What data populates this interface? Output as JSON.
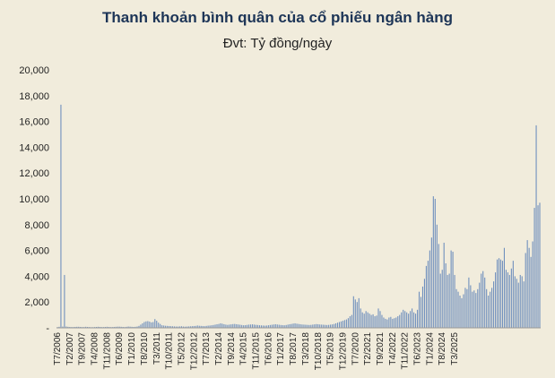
{
  "title": "Thanh khoản bình quân của cổ phiếu ngân hàng",
  "subtitle": "Đvt: Tỷ đồng/ngày",
  "colors": {
    "bar": "#6f8fbd",
    "background": "#f1ecdc",
    "title": "#1d3557"
  },
  "chart_data": {
    "type": "bar",
    "title": "Thanh khoản bình quân của cổ phiếu ngân hàng",
    "subtitle": "Đvt: Tỷ đồng/ngày",
    "xlabel": "",
    "ylabel": "",
    "ylim": [
      0,
      20000
    ],
    "yticks": [
      0,
      2000,
      4000,
      6000,
      8000,
      10000,
      12000,
      14000,
      16000,
      18000,
      20000
    ],
    "ytick_labels": [
      "-",
      "2,000",
      "4,000",
      "6,000",
      "8,000",
      "10,000",
      "12,000",
      "14,000",
      "16,000",
      "18,000",
      "20,000"
    ],
    "grid": false,
    "start": "2006-07",
    "xtick_labels": [
      "T7/2006",
      "T2/2007",
      "T9/2007",
      "T4/2008",
      "T11/2008",
      "T6/2009",
      "T1/2010",
      "T8/2010",
      "T3/2011",
      "T10/2011",
      "T5/2012",
      "T12/2012",
      "T7/2013",
      "T2/2014",
      "T9/2014",
      "T4/2015",
      "T11/2015",
      "T6/2016",
      "T1/2017",
      "T8/2017",
      "T3/2018",
      "T10/2018",
      "T5/2019",
      "T12/2019",
      "T7/2020",
      "T2/2021",
      "T9/2021",
      "T4/2022",
      "T11/2022",
      "T6/2023",
      "T1/2024",
      "T8/2024",
      "T3/2025"
    ],
    "values": [
      50,
      80,
      17300,
      100,
      4100,
      100,
      80,
      70,
      60,
      60,
      70,
      80,
      80,
      70,
      60,
      60,
      80,
      70,
      60,
      50,
      50,
      60,
      70,
      80,
      70,
      60,
      60,
      70,
      80,
      70,
      60,
      60,
      70,
      80,
      90,
      90,
      80,
      70,
      60,
      80,
      100,
      90,
      80,
      70,
      80,
      100,
      150,
      250,
      350,
      450,
      500,
      520,
      480,
      420,
      450,
      680,
      550,
      400,
      300,
      200,
      180,
      160,
      150,
      140,
      130,
      120,
      110,
      100,
      100,
      110,
      120,
      100,
      90,
      100,
      110,
      120,
      130,
      140,
      150,
      180,
      160,
      150,
      140,
      130,
      150,
      170,
      180,
      200,
      220,
      250,
      280,
      300,
      350,
      320,
      280,
      250,
      230,
      250,
      270,
      290,
      300,
      280,
      260,
      240,
      220,
      200,
      210,
      230,
      250,
      260,
      270,
      250,
      230,
      220,
      200,
      190,
      180,
      170,
      180,
      200,
      220,
      240,
      260,
      280,
      260,
      240,
      220,
      210,
      200,
      220,
      250,
      280,
      300,
      330,
      350,
      320,
      300,
      280,
      260,
      250,
      240,
      230,
      220,
      230,
      250,
      270,
      290,
      280,
      260,
      250,
      240,
      230,
      220,
      230,
      250,
      270,
      300,
      350,
      400,
      450,
      500,
      550,
      600,
      650,
      750,
      900,
      1000,
      2450,
      2200,
      2000,
      2300,
      1500,
      1200,
      1100,
      1300,
      1200,
      1100,
      1000,
      1050,
      900,
      950,
      1500,
      1300,
      1000,
      800,
      700,
      650,
      800,
      850,
      700,
      750,
      800,
      900,
      1000,
      1200,
      1400,
      1300,
      1200,
      1100,
      1300,
      1500,
      1200,
      1100,
      1400,
      2800,
      2400,
      3200,
      3800,
      4800,
      5200,
      6000,
      7000,
      10200,
      10000,
      8000,
      6500,
      4200,
      4500,
      6600,
      5000,
      4100,
      4200,
      6000,
      5900,
      4100,
      3000,
      2800,
      2500,
      2300,
      2600,
      3100,
      3000,
      3900,
      3300,
      2800,
      2900,
      2700,
      3000,
      3500,
      4200,
      4400,
      3900,
      3000,
      2500,
      2800,
      3100,
      3600,
      4300,
      5300,
      5400,
      5300,
      5200,
      6200,
      4500,
      4300,
      4100,
      4600,
      5200,
      4000,
      3800,
      3500,
      4100,
      4000,
      3600,
      5800,
      6800,
      6200,
      5500,
      6700,
      9300,
      15700,
      9500,
      9700
    ]
  }
}
